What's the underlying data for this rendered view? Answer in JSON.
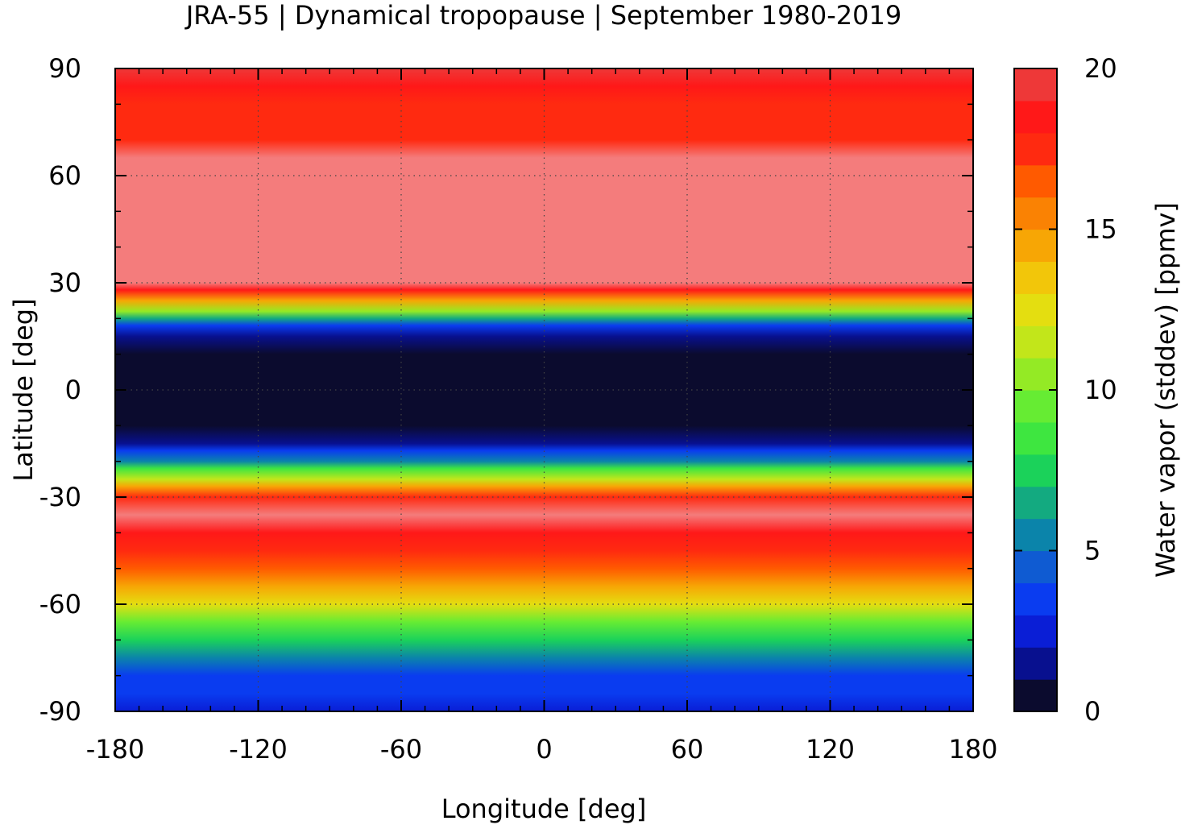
{
  "chart_data": {
    "type": "heatmap",
    "title": "JRA-55 | Dynamical tropopause | September 1980-2019",
    "xlabel": "Longitude [deg]",
    "ylabel": "Latitude [deg]",
    "xlim": [
      -180,
      180
    ],
    "ylim": [
      -90,
      90
    ],
    "xticks": [
      -180,
      -120,
      -60,
      0,
      60,
      120,
      180
    ],
    "yticks": [
      -90,
      -60,
      -30,
      0,
      30,
      60,
      90
    ],
    "grid": true,
    "colorbar": {
      "label": "Water vapor (stddev) [ppmv]",
      "range": [
        0,
        20
      ],
      "ticks": [
        0,
        5,
        10,
        15,
        20
      ],
      "levels": [
        0,
        1,
        2,
        3,
        4,
        5,
        6,
        7,
        8,
        9,
        10,
        11,
        12,
        13,
        14,
        15,
        16,
        17,
        18,
        19,
        20
      ],
      "colors": [
        "#0b0b2e",
        "#08108f",
        "#0a1ed6",
        "#0a3cf0",
        "#0f5bd2",
        "#0b84aa",
        "#13aa80",
        "#1bd25a",
        "#3ee640",
        "#66ec33",
        "#94ea25",
        "#c2e61a",
        "#e4de10",
        "#f2c60a",
        "#f7a605",
        "#fa8203",
        "#ff5a00",
        "#ff2a10",
        "#ff1818",
        "#ee3838",
        "#f47c7c",
        "#ffcccc"
      ]
    },
    "zonal_profile": {
      "latitude": [
        -90,
        -85,
        -80,
        -75,
        -70,
        -65,
        -60,
        -55,
        -50,
        -45,
        -40,
        -35,
        -30,
        -27,
        -25,
        -22,
        -20,
        -17,
        -15,
        -10,
        -5,
        0,
        5,
        10,
        15,
        18,
        20,
        22,
        25,
        28,
        30,
        35,
        40,
        50,
        60,
        65,
        70,
        75,
        80,
        85,
        90
      ],
      "value": [
        2.5,
        3,
        3.5,
        5,
        7,
        9.5,
        12,
        14,
        16,
        17,
        18,
        20,
        17,
        14,
        11,
        8,
        5,
        3,
        1,
        0.3,
        0.2,
        0.2,
        0.2,
        0.4,
        1.5,
        3,
        6,
        10,
        14,
        18,
        20,
        20,
        20,
        20,
        20,
        20,
        17,
        17,
        17,
        18,
        19
      ]
    }
  }
}
